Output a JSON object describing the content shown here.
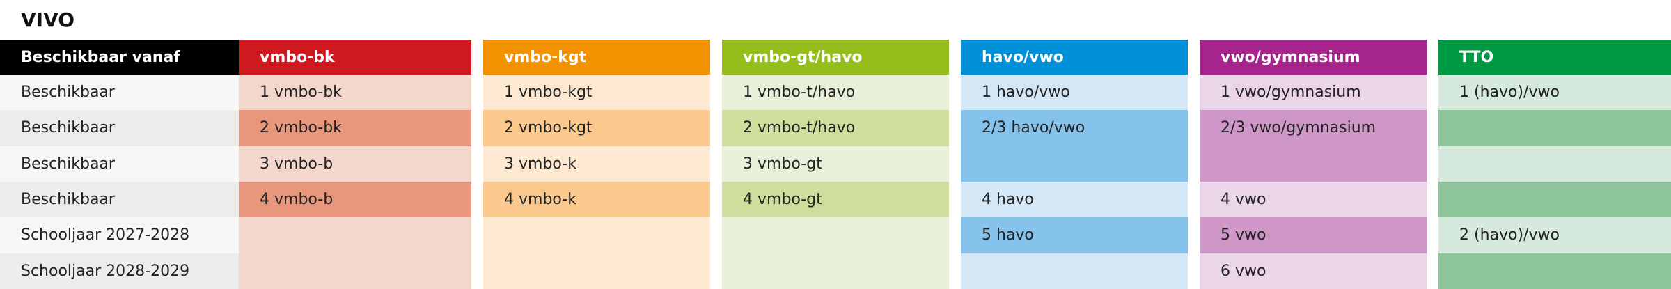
{
  "title": "VIVO",
  "table": {
    "row_header": {
      "header": "Beschikbaar vanaf",
      "color": "#000000",
      "cells": [
        "Beschikbaar",
        "Beschikbaar",
        "Beschikbaar",
        "Beschikbaar",
        "Schooljaar 2027-2028",
        "Schooljaar 2028-2029"
      ]
    },
    "columns": [
      {
        "header": "vmbo-bk",
        "color": "#d0181f",
        "light": "#f3d7cc",
        "dark": "#e8977c",
        "cells": [
          {
            "text": "1 vmbo-bk",
            "span": 1,
            "shade": "light"
          },
          {
            "text": "2 vmbo-bk",
            "span": 1,
            "shade": "dark"
          },
          {
            "text": "3 vmbo-b",
            "span": 1,
            "shade": "light"
          },
          {
            "text": "4 vmbo-b",
            "span": 1,
            "shade": "dark"
          },
          {
            "text": null,
            "span": 1,
            "shade": "light"
          },
          {
            "text": null,
            "span": 1,
            "shade": "light"
          }
        ]
      },
      {
        "header": "vmbo-kgt",
        "color": "#f39200",
        "light": "#fde8d2",
        "dark": "#fbc98d",
        "cells": [
          {
            "text": "1 vmbo-kgt",
            "span": 1,
            "shade": "light"
          },
          {
            "text": "2 vmbo-kgt",
            "span": 1,
            "shade": "dark"
          },
          {
            "text": "3 vmbo-k",
            "span": 1,
            "shade": "light"
          },
          {
            "text": "4 vmbo-k",
            "span": 1,
            "shade": "dark"
          },
          {
            "text": null,
            "span": 1,
            "shade": "light"
          },
          {
            "text": null,
            "span": 1,
            "shade": "light"
          }
        ]
      },
      {
        "header": "vmbo-gt/havo",
        "color": "#95be1d",
        "light": "#e9f0da",
        "dark": "#cfdd9d",
        "cells": [
          {
            "text": "1 vmbo-t/havo",
            "span": 1,
            "shade": "light"
          },
          {
            "text": "2 vmbo-t/havo",
            "span": 1,
            "shade": "dark"
          },
          {
            "text": "3 vmbo-gt",
            "span": 1,
            "shade": "light"
          },
          {
            "text": "4 vmbo-gt",
            "span": 1,
            "shade": "dark"
          },
          {
            "text": null,
            "span": 1,
            "shade": "light"
          },
          {
            "text": null,
            "span": 1,
            "shade": "light"
          }
        ]
      },
      {
        "header": "havo/vwo",
        "color": "#0090d8",
        "light": "#d4e7f6",
        "dark": "#85c3ec",
        "cells": [
          {
            "text": "1 havo/vwo",
            "span": 1,
            "shade": "light"
          },
          {
            "text": "2/3 havo/vwo",
            "span": 2,
            "shade": "dark"
          },
          {
            "text": "4 havo",
            "span": 1,
            "shade": "light"
          },
          {
            "text": "5 havo",
            "span": 1,
            "shade": "dark"
          },
          {
            "text": null,
            "span": 1,
            "shade": "light"
          }
        ]
      },
      {
        "header": "vwo/gymnasium",
        "color": "#a6258c",
        "light": "#ead6e8",
        "dark": "#cf97c8",
        "cells": [
          {
            "text": "1 vwo/gymnasium",
            "span": 1,
            "shade": "light"
          },
          {
            "text": "2/3 vwo/gymnasium",
            "span": 2,
            "shade": "dark"
          },
          {
            "text": "4 vwo",
            "span": 1,
            "shade": "light"
          },
          {
            "text": "5 vwo",
            "span": 1,
            "shade": "dark"
          },
          {
            "text": "6 vwo",
            "span": 1,
            "shade": "light"
          }
        ]
      },
      {
        "header": "TTO",
        "color": "#009a44",
        "light": "#d5e9dc",
        "dark": "#8fc59a",
        "cells": [
          {
            "text": "1 (havo)/vwo",
            "span": 1,
            "shade": "light"
          },
          {
            "text": null,
            "span": 1,
            "shade": "dark"
          },
          {
            "text": null,
            "span": 1,
            "shade": "light"
          },
          {
            "text": null,
            "span": 1,
            "shade": "dark"
          },
          {
            "text": "2 (havo)/vwo",
            "span": 1,
            "shade": "light"
          },
          {
            "text": null,
            "span": 1,
            "shade": "dark"
          }
        ]
      }
    ]
  }
}
